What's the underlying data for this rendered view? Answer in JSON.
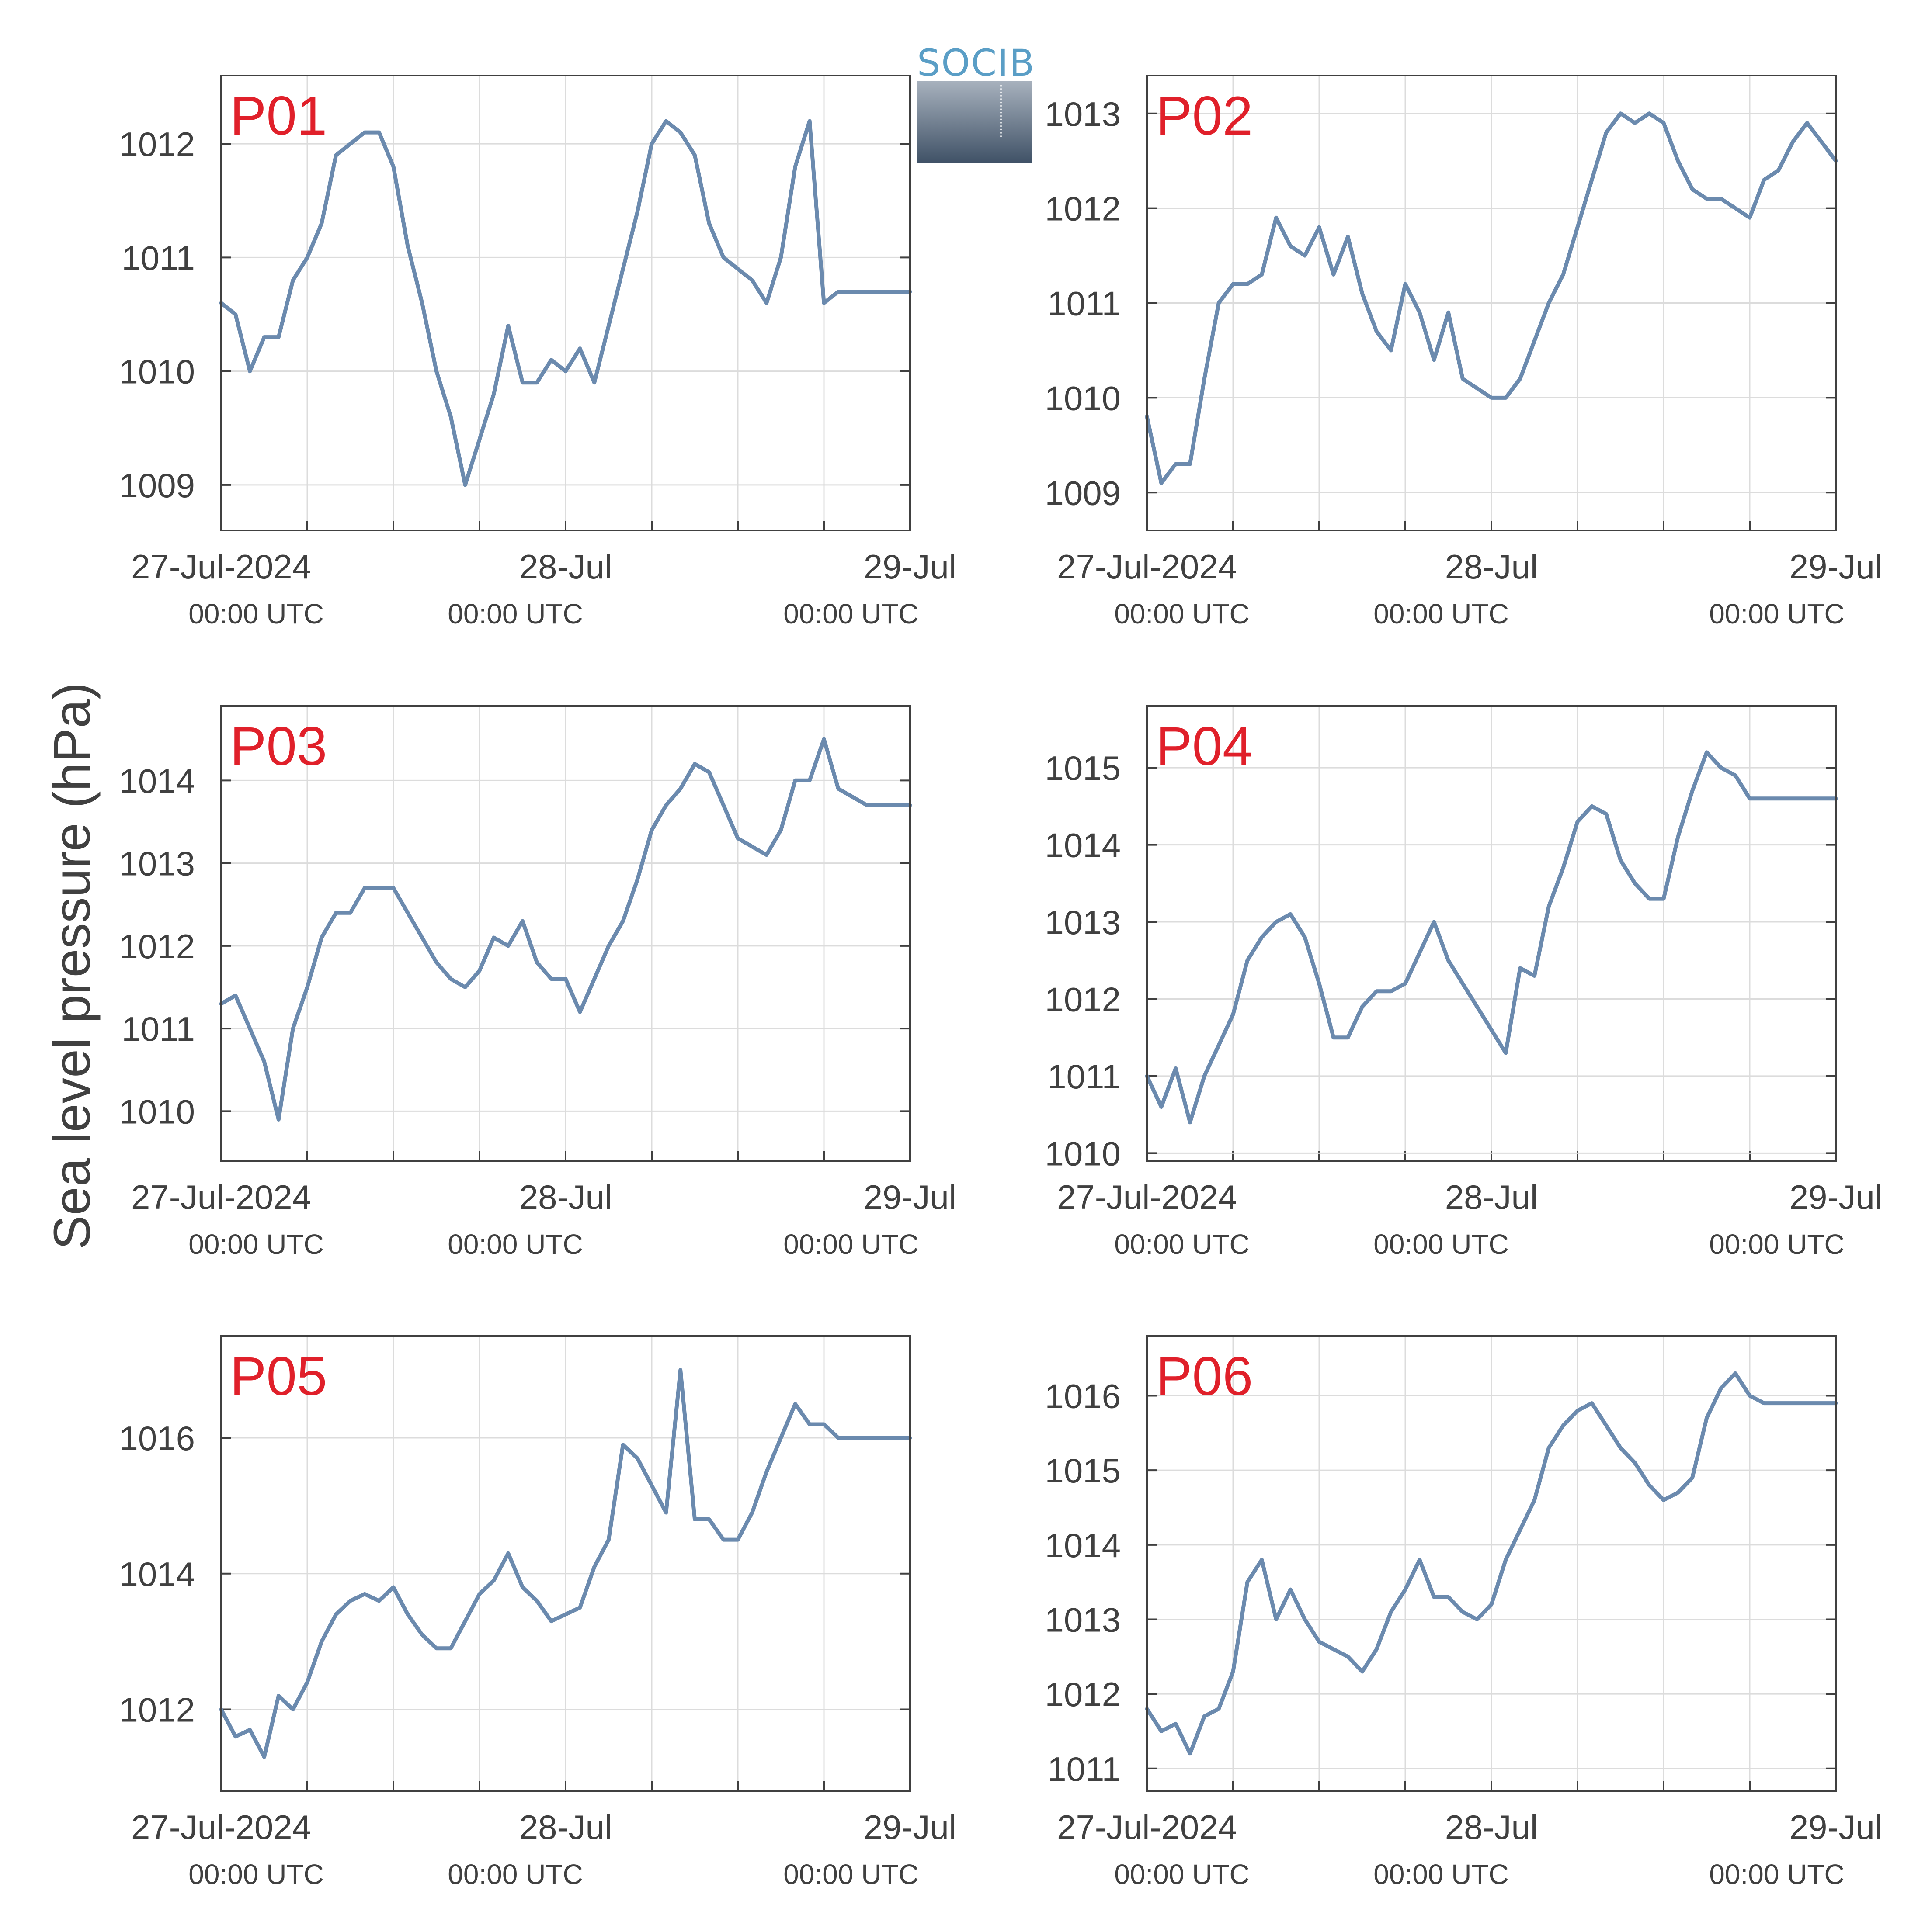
{
  "ylabel": "Sea level pressure (hPa)",
  "logo_text": "SOCIB",
  "colors": {
    "line": "#6b8aae",
    "panel_label": "#e0202a",
    "axis": "#404040",
    "grid": "#dcdcdc"
  },
  "x_ticks": [
    {
      "date": "27-Jul-2024",
      "time": "00:00 UTC"
    },
    {
      "date": "28-Jul",
      "time": "00:00 UTC"
    },
    {
      "date": "29-Jul",
      "time": "00:00 UTC"
    }
  ],
  "chart_data": [
    {
      "type": "line",
      "title": "P01",
      "xlabel": "",
      "ylabel": "Sea level pressure (hPa)",
      "xlim": [
        "2024-07-27T00:00",
        "2024-07-29T00:00"
      ],
      "ylim": [
        1008.6,
        1012.6
      ],
      "yticks": [
        1009,
        1010,
        1011,
        1012
      ],
      "series": [
        {
          "x": [
            "2024-07-27T00:00",
            "2024-07-27T01:00",
            "2024-07-27T02:00",
            "2024-07-27T03:00",
            "2024-07-27T04:00",
            "2024-07-27T05:00",
            "2024-07-27T06:00",
            "2024-07-27T07:00",
            "2024-07-27T08:00",
            "2024-07-27T09:00",
            "2024-07-27T10:00",
            "2024-07-27T11:00",
            "2024-07-27T12:00",
            "2024-07-27T13:00",
            "2024-07-27T14:00",
            "2024-07-27T15:00",
            "2024-07-27T16:00",
            "2024-07-27T17:00",
            "2024-07-27T18:00",
            "2024-07-27T19:00",
            "2024-07-27T20:00",
            "2024-07-27T21:00",
            "2024-07-27T22:00",
            "2024-07-27T23:00",
            "2024-07-28T00:00",
            "2024-07-28T01:00",
            "2024-07-28T02:00",
            "2024-07-28T03:00",
            "2024-07-28T04:00",
            "2024-07-28T05:00",
            "2024-07-28T06:00",
            "2024-07-28T07:00",
            "2024-07-28T08:00",
            "2024-07-28T09:00",
            "2024-07-28T10:00",
            "2024-07-28T11:00",
            "2024-07-28T12:00",
            "2024-07-28T13:00",
            "2024-07-28T14:00",
            "2024-07-28T15:00",
            "2024-07-28T16:00",
            "2024-07-28T17:00",
            "2024-07-28T18:00",
            "2024-07-28T19:00",
            "2024-07-28T20:00",
            "2024-07-28T21:00",
            "2024-07-28T22:00",
            "2024-07-28T23:00",
            "2024-07-29T00:00"
          ],
          "y": [
            1010.6,
            1010.5,
            1010.0,
            1010.3,
            1010.3,
            1010.8,
            1011.0,
            1011.3,
            1011.9,
            1012.0,
            1012.1,
            1012.1,
            1011.8,
            1011.1,
            1010.6,
            1010.0,
            1009.6,
            1009.0,
            1009.4,
            1009.8,
            1010.4,
            1009.9,
            1009.9,
            1010.1,
            1010.0,
            1010.2,
            1009.9,
            1010.4,
            1010.9,
            1011.4,
            1012.0,
            1012.2,
            1012.1,
            1011.9,
            1011.3,
            1011.0,
            1010.9,
            1010.8,
            1010.6,
            1011.0,
            1011.8,
            1012.2,
            1010.6,
            1010.7,
            1010.7,
            1010.7,
            1010.7,
            1010.7,
            1010.7
          ]
        }
      ]
    },
    {
      "type": "line",
      "title": "P02",
      "xlabel": "",
      "ylabel": "Sea level pressure (hPa)",
      "xlim": [
        "2024-07-27T00:00",
        "2024-07-29T00:00"
      ],
      "ylim": [
        1008.6,
        1013.4
      ],
      "yticks": [
        1009,
        1010,
        1011,
        1012,
        1013
      ],
      "series": [
        {
          "x": [
            "2024-07-27T00:00",
            "2024-07-27T01:00",
            "2024-07-27T02:00",
            "2024-07-27T03:00",
            "2024-07-27T04:00",
            "2024-07-27T05:00",
            "2024-07-27T06:00",
            "2024-07-27T07:00",
            "2024-07-27T08:00",
            "2024-07-27T09:00",
            "2024-07-27T10:00",
            "2024-07-27T11:00",
            "2024-07-27T12:00",
            "2024-07-27T13:00",
            "2024-07-27T14:00",
            "2024-07-27T15:00",
            "2024-07-27T16:00",
            "2024-07-27T17:00",
            "2024-07-27T18:00",
            "2024-07-27T19:00",
            "2024-07-27T20:00",
            "2024-07-27T21:00",
            "2024-07-27T22:00",
            "2024-07-27T23:00",
            "2024-07-28T00:00",
            "2024-07-28T01:00",
            "2024-07-28T02:00",
            "2024-07-28T03:00",
            "2024-07-28T04:00",
            "2024-07-28T05:00",
            "2024-07-28T06:00",
            "2024-07-28T07:00",
            "2024-07-28T08:00",
            "2024-07-28T09:00",
            "2024-07-28T10:00",
            "2024-07-28T11:00",
            "2024-07-28T12:00",
            "2024-07-28T13:00",
            "2024-07-28T14:00",
            "2024-07-28T15:00",
            "2024-07-28T16:00",
            "2024-07-28T17:00",
            "2024-07-28T18:00",
            "2024-07-28T19:00",
            "2024-07-28T20:00",
            "2024-07-28T21:00",
            "2024-07-28T22:00",
            "2024-07-28T23:00",
            "2024-07-29T00:00"
          ],
          "y": [
            1009.8,
            1009.1,
            1009.3,
            1009.3,
            1010.2,
            1011.0,
            1011.2,
            1011.2,
            1011.3,
            1011.9,
            1011.6,
            1011.5,
            1011.8,
            1011.3,
            1011.7,
            1011.1,
            1010.7,
            1010.5,
            1011.2,
            1010.9,
            1010.4,
            1010.9,
            1010.2,
            1010.1,
            1010.0,
            1010.0,
            1010.2,
            1010.6,
            1011.0,
            1011.3,
            1011.8,
            1012.3,
            1012.8,
            1013.0,
            1012.9,
            1013.0,
            1012.9,
            1012.5,
            1012.2,
            1012.1,
            1012.1,
            1012.0,
            1011.9,
            1012.3,
            1012.4,
            1012.7,
            1012.9,
            1012.7,
            1012.5
          ]
        }
      ]
    },
    {
      "type": "line",
      "title": "P03",
      "xlabel": "",
      "ylabel": "Sea level pressure (hPa)",
      "xlim": [
        "2024-07-27T00:00",
        "2024-07-29T00:00"
      ],
      "ylim": [
        1009.4,
        1014.9
      ],
      "yticks": [
        1010,
        1011,
        1012,
        1013,
        1014
      ],
      "series": [
        {
          "x": [
            "2024-07-27T00:00",
            "2024-07-27T01:00",
            "2024-07-27T02:00",
            "2024-07-27T03:00",
            "2024-07-27T04:00",
            "2024-07-27T05:00",
            "2024-07-27T06:00",
            "2024-07-27T07:00",
            "2024-07-27T08:00",
            "2024-07-27T09:00",
            "2024-07-27T10:00",
            "2024-07-27T11:00",
            "2024-07-27T12:00",
            "2024-07-27T13:00",
            "2024-07-27T14:00",
            "2024-07-27T15:00",
            "2024-07-27T16:00",
            "2024-07-27T17:00",
            "2024-07-27T18:00",
            "2024-07-27T19:00",
            "2024-07-27T20:00",
            "2024-07-27T21:00",
            "2024-07-27T22:00",
            "2024-07-27T23:00",
            "2024-07-28T00:00",
            "2024-07-28T01:00",
            "2024-07-28T02:00",
            "2024-07-28T03:00",
            "2024-07-28T04:00",
            "2024-07-28T05:00",
            "2024-07-28T06:00",
            "2024-07-28T07:00",
            "2024-07-28T08:00",
            "2024-07-28T09:00",
            "2024-07-28T10:00",
            "2024-07-28T11:00",
            "2024-07-28T12:00",
            "2024-07-28T13:00",
            "2024-07-28T14:00",
            "2024-07-28T15:00",
            "2024-07-28T16:00",
            "2024-07-28T17:00",
            "2024-07-28T18:00",
            "2024-07-28T19:00",
            "2024-07-28T20:00",
            "2024-07-28T21:00",
            "2024-07-28T22:00",
            "2024-07-28T23:00",
            "2024-07-29T00:00"
          ],
          "y": [
            1011.3,
            1011.4,
            1011.0,
            1010.6,
            1009.9,
            1011.0,
            1011.5,
            1012.1,
            1012.4,
            1012.4,
            1012.7,
            1012.7,
            1012.7,
            1012.4,
            1012.1,
            1011.8,
            1011.6,
            1011.5,
            1011.7,
            1012.1,
            1012.0,
            1012.3,
            1011.8,
            1011.6,
            1011.6,
            1011.2,
            1011.6,
            1012.0,
            1012.3,
            1012.8,
            1013.4,
            1013.7,
            1013.9,
            1014.2,
            1014.1,
            1013.7,
            1013.3,
            1013.2,
            1013.1,
            1013.4,
            1014.0,
            1014.0,
            1014.5,
            1013.9,
            1013.8,
            1013.7,
            1013.7,
            1013.7,
            1013.7
          ]
        }
      ]
    },
    {
      "type": "line",
      "title": "P04",
      "xlabel": "",
      "ylabel": "Sea level pressure (hPa)",
      "xlim": [
        "2024-07-27T00:00",
        "2024-07-29T00:00"
      ],
      "ylim": [
        1009.9,
        1015.8
      ],
      "yticks": [
        1010,
        1011,
        1012,
        1013,
        1014,
        1015
      ],
      "series": [
        {
          "x": [
            "2024-07-27T00:00",
            "2024-07-27T01:00",
            "2024-07-27T02:00",
            "2024-07-27T03:00",
            "2024-07-27T04:00",
            "2024-07-27T05:00",
            "2024-07-27T06:00",
            "2024-07-27T07:00",
            "2024-07-27T08:00",
            "2024-07-27T09:00",
            "2024-07-27T10:00",
            "2024-07-27T11:00",
            "2024-07-27T12:00",
            "2024-07-27T13:00",
            "2024-07-27T14:00",
            "2024-07-27T15:00",
            "2024-07-27T16:00",
            "2024-07-27T17:00",
            "2024-07-27T18:00",
            "2024-07-27T19:00",
            "2024-07-27T20:00",
            "2024-07-27T21:00",
            "2024-07-27T22:00",
            "2024-07-27T23:00",
            "2024-07-28T00:00",
            "2024-07-28T01:00",
            "2024-07-28T02:00",
            "2024-07-28T03:00",
            "2024-07-28T04:00",
            "2024-07-28T05:00",
            "2024-07-28T06:00",
            "2024-07-28T07:00",
            "2024-07-28T08:00",
            "2024-07-28T09:00",
            "2024-07-28T10:00",
            "2024-07-28T11:00",
            "2024-07-28T12:00",
            "2024-07-28T13:00",
            "2024-07-28T14:00",
            "2024-07-28T15:00",
            "2024-07-28T16:00",
            "2024-07-28T17:00",
            "2024-07-28T18:00",
            "2024-07-28T19:00",
            "2024-07-28T20:00",
            "2024-07-28T21:00",
            "2024-07-28T22:00",
            "2024-07-28T23:00",
            "2024-07-29T00:00"
          ],
          "y": [
            1011.0,
            1010.6,
            1011.1,
            1010.4,
            1011.0,
            1011.4,
            1011.8,
            1012.5,
            1012.8,
            1013.0,
            1013.1,
            1012.8,
            1012.2,
            1011.5,
            1011.5,
            1011.9,
            1012.1,
            1012.1,
            1012.2,
            1012.6,
            1013.0,
            1012.5,
            1012.2,
            1011.9,
            1011.6,
            1011.3,
            1012.4,
            1012.3,
            1013.2,
            1013.7,
            1014.3,
            1014.5,
            1014.4,
            1013.8,
            1013.5,
            1013.3,
            1013.3,
            1014.1,
            1014.7,
            1015.2,
            1015.0,
            1014.9,
            1014.6,
            1014.6,
            1014.6,
            1014.6,
            1014.6,
            1014.6,
            1014.6
          ]
        }
      ]
    },
    {
      "type": "line",
      "title": "P05",
      "xlabel": "",
      "ylabel": "Sea level pressure (hPa)",
      "xlim": [
        "2024-07-27T00:00",
        "2024-07-29T00:00"
      ],
      "ylim": [
        1010.8,
        1017.5
      ],
      "yticks": [
        1012,
        1014,
        1016
      ],
      "series": [
        {
          "x": [
            "2024-07-27T00:00",
            "2024-07-27T01:00",
            "2024-07-27T02:00",
            "2024-07-27T03:00",
            "2024-07-27T04:00",
            "2024-07-27T05:00",
            "2024-07-27T06:00",
            "2024-07-27T07:00",
            "2024-07-27T08:00",
            "2024-07-27T09:00",
            "2024-07-27T10:00",
            "2024-07-27T11:00",
            "2024-07-27T12:00",
            "2024-07-27T13:00",
            "2024-07-27T14:00",
            "2024-07-27T15:00",
            "2024-07-27T16:00",
            "2024-07-27T17:00",
            "2024-07-27T18:00",
            "2024-07-27T19:00",
            "2024-07-27T20:00",
            "2024-07-27T21:00",
            "2024-07-27T22:00",
            "2024-07-27T23:00",
            "2024-07-28T00:00",
            "2024-07-28T01:00",
            "2024-07-28T02:00",
            "2024-07-28T03:00",
            "2024-07-28T04:00",
            "2024-07-28T05:00",
            "2024-07-28T06:00",
            "2024-07-28T07:00",
            "2024-07-28T08:00",
            "2024-07-28T09:00",
            "2024-07-28T10:00",
            "2024-07-28T11:00",
            "2024-07-28T12:00",
            "2024-07-28T13:00",
            "2024-07-28T14:00",
            "2024-07-28T15:00",
            "2024-07-28T16:00",
            "2024-07-28T17:00",
            "2024-07-28T18:00",
            "2024-07-28T19:00",
            "2024-07-28T20:00",
            "2024-07-28T21:00",
            "2024-07-28T22:00",
            "2024-07-28T23:00",
            "2024-07-29T00:00"
          ],
          "y": [
            1012.0,
            1011.6,
            1011.7,
            1011.3,
            1012.2,
            1012.0,
            1012.4,
            1013.0,
            1013.4,
            1013.6,
            1013.7,
            1013.6,
            1013.8,
            1013.4,
            1013.1,
            1012.9,
            1012.9,
            1013.3,
            1013.7,
            1013.9,
            1014.3,
            1013.8,
            1013.6,
            1013.3,
            1013.4,
            1013.5,
            1014.1,
            1014.5,
            1015.9,
            1015.7,
            1015.3,
            1014.9,
            1017.0,
            1014.8,
            1014.8,
            1014.5,
            1014.5,
            1014.9,
            1015.5,
            1016.0,
            1016.5,
            1016.2,
            1016.2,
            1016.0,
            1016.0,
            1016.0,
            1016.0,
            1016.0,
            1016.0
          ]
        }
      ]
    },
    {
      "type": "line",
      "title": "P06",
      "xlabel": "",
      "ylabel": "Sea level pressure (hPa)",
      "xlim": [
        "2024-07-27T00:00",
        "2024-07-29T00:00"
      ],
      "ylim": [
        1010.7,
        1016.8
      ],
      "yticks": [
        1011,
        1012,
        1013,
        1014,
        1015,
        1016
      ],
      "series": [
        {
          "x": [
            "2024-07-27T00:00",
            "2024-07-27T01:00",
            "2024-07-27T02:00",
            "2024-07-27T03:00",
            "2024-07-27T04:00",
            "2024-07-27T05:00",
            "2024-07-27T06:00",
            "2024-07-27T07:00",
            "2024-07-27T08:00",
            "2024-07-27T09:00",
            "2024-07-27T10:00",
            "2024-07-27T11:00",
            "2024-07-27T12:00",
            "2024-07-27T13:00",
            "2024-07-27T14:00",
            "2024-07-27T15:00",
            "2024-07-27T16:00",
            "2024-07-27T17:00",
            "2024-07-27T18:00",
            "2024-07-27T19:00",
            "2024-07-27T20:00",
            "2024-07-27T21:00",
            "2024-07-27T22:00",
            "2024-07-27T23:00",
            "2024-07-28T00:00",
            "2024-07-28T01:00",
            "2024-07-28T02:00",
            "2024-07-28T03:00",
            "2024-07-28T04:00",
            "2024-07-28T05:00",
            "2024-07-28T06:00",
            "2024-07-28T07:00",
            "2024-07-28T08:00",
            "2024-07-28T09:00",
            "2024-07-28T10:00",
            "2024-07-28T11:00",
            "2024-07-28T12:00",
            "2024-07-28T13:00",
            "2024-07-28T14:00",
            "2024-07-28T15:00",
            "2024-07-28T16:00",
            "2024-07-28T17:00",
            "2024-07-28T18:00",
            "2024-07-28T19:00",
            "2024-07-28T20:00",
            "2024-07-28T21:00",
            "2024-07-28T22:00",
            "2024-07-28T23:00",
            "2024-07-29T00:00"
          ],
          "y": [
            1011.8,
            1011.5,
            1011.6,
            1011.2,
            1011.7,
            1011.8,
            1012.3,
            1013.5,
            1013.8,
            1013.0,
            1013.4,
            1013.0,
            1012.7,
            1012.6,
            1012.5,
            1012.3,
            1012.6,
            1013.1,
            1013.4,
            1013.8,
            1013.3,
            1013.3,
            1013.1,
            1013.0,
            1013.2,
            1013.8,
            1014.2,
            1014.6,
            1015.3,
            1015.6,
            1015.8,
            1015.9,
            1015.6,
            1015.3,
            1015.1,
            1014.8,
            1014.6,
            1014.7,
            1014.9,
            1015.7,
            1016.1,
            1016.3,
            1016.0,
            1015.9,
            1015.9,
            1015.9,
            1015.9,
            1015.9,
            1015.9
          ]
        }
      ]
    }
  ]
}
